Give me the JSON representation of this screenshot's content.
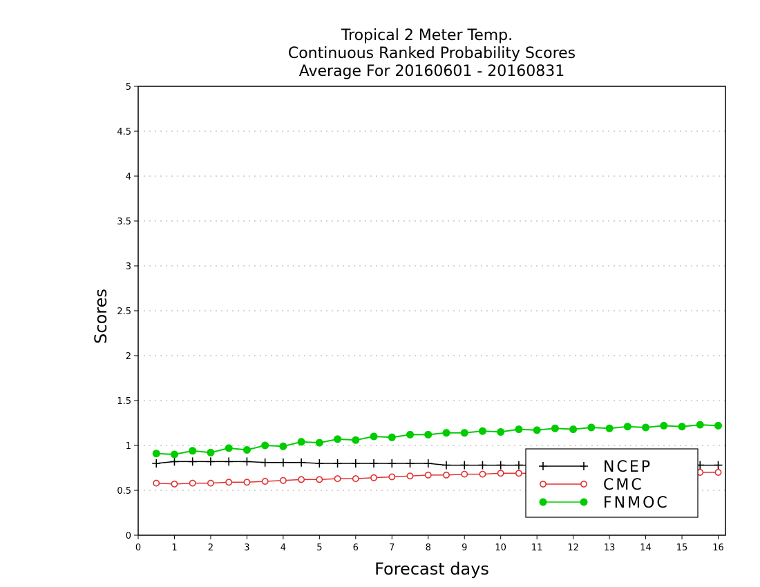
{
  "chart_data": {
    "type": "line",
    "title": [
      "Tropical 2 Meter Temp.",
      "Continuous Ranked Probability Scores",
      "Average For 20160601 - 20160831"
    ],
    "xlabel": "Forecast days",
    "ylabel": "Scores",
    "xlim": [
      0,
      16.2
    ],
    "ylim": [
      0,
      5
    ],
    "xticks": [
      "0",
      "1",
      "2",
      "3",
      "4",
      "5",
      "6",
      "7",
      "8",
      "9",
      "10",
      "11",
      "12",
      "13",
      "14",
      "15",
      "16"
    ],
    "yticks": [
      "0",
      "0.5",
      "1",
      "1.5",
      "2",
      "2.5",
      "3",
      "3.5",
      "4",
      "4.5",
      "5"
    ],
    "grid": "horizontal dotted",
    "legend_position": "bottom-right",
    "x": [
      0.5,
      1,
      1.5,
      2,
      2.5,
      3,
      3.5,
      4,
      4.5,
      5,
      5.5,
      6,
      6.5,
      7,
      7.5,
      8,
      8.5,
      9,
      9.5,
      10,
      10.5,
      11,
      11.5,
      12,
      12.5,
      13,
      13.5,
      14,
      14.5,
      15,
      15.5,
      16
    ],
    "series": [
      {
        "name": "NCEP",
        "color": "#000000",
        "marker": "plus",
        "values": [
          0.8,
          0.82,
          0.82,
          0.82,
          0.82,
          0.82,
          0.81,
          0.81,
          0.81,
          0.8,
          0.8,
          0.8,
          0.8,
          0.8,
          0.8,
          0.8,
          0.78,
          0.78,
          0.78,
          0.78,
          0.78,
          0.78,
          0.78,
          0.78,
          0.78,
          0.78,
          0.78,
          0.78,
          0.78,
          0.78,
          0.78,
          0.78
        ]
      },
      {
        "name": "CMC",
        "color": "#e03030",
        "marker": "open-circle",
        "values": [
          0.58,
          0.57,
          0.58,
          0.58,
          0.59,
          0.59,
          0.6,
          0.61,
          0.62,
          0.62,
          0.63,
          0.63,
          0.64,
          0.65,
          0.66,
          0.67,
          0.67,
          0.68,
          0.68,
          0.69,
          0.69,
          0.69,
          0.7,
          0.7,
          0.7,
          0.7,
          0.7,
          0.7,
          0.7,
          0.7,
          0.7,
          0.7
        ]
      },
      {
        "name": "FNMOC",
        "color": "#00cc00",
        "marker": "filled-circle",
        "values": [
          0.91,
          0.9,
          0.94,
          0.92,
          0.97,
          0.95,
          1.0,
          0.99,
          1.04,
          1.03,
          1.07,
          1.06,
          1.1,
          1.09,
          1.12,
          1.12,
          1.14,
          1.14,
          1.16,
          1.15,
          1.18,
          1.17,
          1.19,
          1.18,
          1.2,
          1.19,
          1.21,
          1.2,
          1.22,
          1.21,
          1.23,
          1.22
        ]
      }
    ]
  }
}
